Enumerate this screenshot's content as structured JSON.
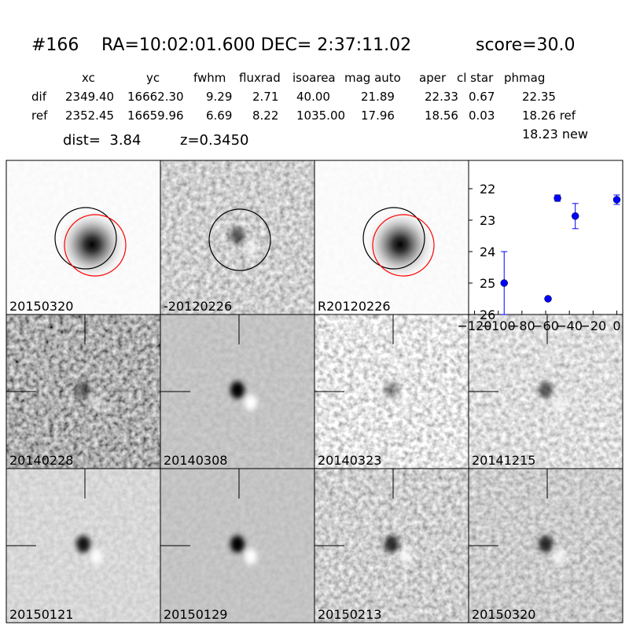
{
  "header": {
    "id": "#166",
    "coords": "RA=10:02:01.600 DEC= 2:37:11.02",
    "score": "score=30.0",
    "dist": "dist=  3.84",
    "z": "z=0.3450",
    "new": "18.23 new"
  },
  "table": {
    "columns": [
      "xc",
      "yc",
      "fwhm",
      "fluxrad",
      "isoarea",
      "mag auto",
      "aper",
      "cl star",
      "phmag"
    ],
    "rows": [
      [
        "dif",
        "2349.40",
        "16662.30",
        "9.29",
        "2.71",
        "40.00",
        "21.89",
        "22.33",
        "0.67",
        "22.35"
      ],
      [
        "ref",
        "2352.45",
        "16659.96",
        "6.69",
        "8.22",
        "1035.00",
        "17.96",
        "18.56",
        "0.03",
        "18.26 ref"
      ]
    ]
  },
  "stamps": [
    {
      "label": "20150320"
    },
    {
      "label": "-20120226"
    },
    {
      "label": "R20120226"
    },
    {
      "label": "20140228"
    },
    {
      "label": "20140308"
    },
    {
      "label": "20140323"
    },
    {
      "label": "20141215"
    },
    {
      "label": "20150121"
    },
    {
      "label": "20150129"
    },
    {
      "label": "20150213"
    },
    {
      "label": "20150320",
      "color": "#ff0000"
    }
  ],
  "chart_data": {
    "type": "errorbar",
    "x": [
      -95,
      -58,
      -50,
      -35,
      0
    ],
    "series": [
      {
        "color": "#0000ff",
        "values": [
          25.0,
          25.5,
          22.3,
          22.87,
          22.35
        ],
        "errors": [
          1.0,
          0.05,
          0.1,
          0.4,
          0.15
        ]
      }
    ],
    "xlim": [
      -125,
      5
    ],
    "ylim": [
      26,
      21.1
    ],
    "xticks": [
      {
        "value": -120,
        "label": "−120"
      },
      {
        "value": -100,
        "label": "−100"
      },
      {
        "value": -80,
        "label": "−80"
      },
      {
        "value": -60,
        "label": "−60"
      },
      {
        "value": -40,
        "label": "−40"
      },
      {
        "value": -20,
        "label": "−20"
      },
      0
    ],
    "yticks": [
      22,
      23,
      24,
      25,
      26
    ]
  }
}
